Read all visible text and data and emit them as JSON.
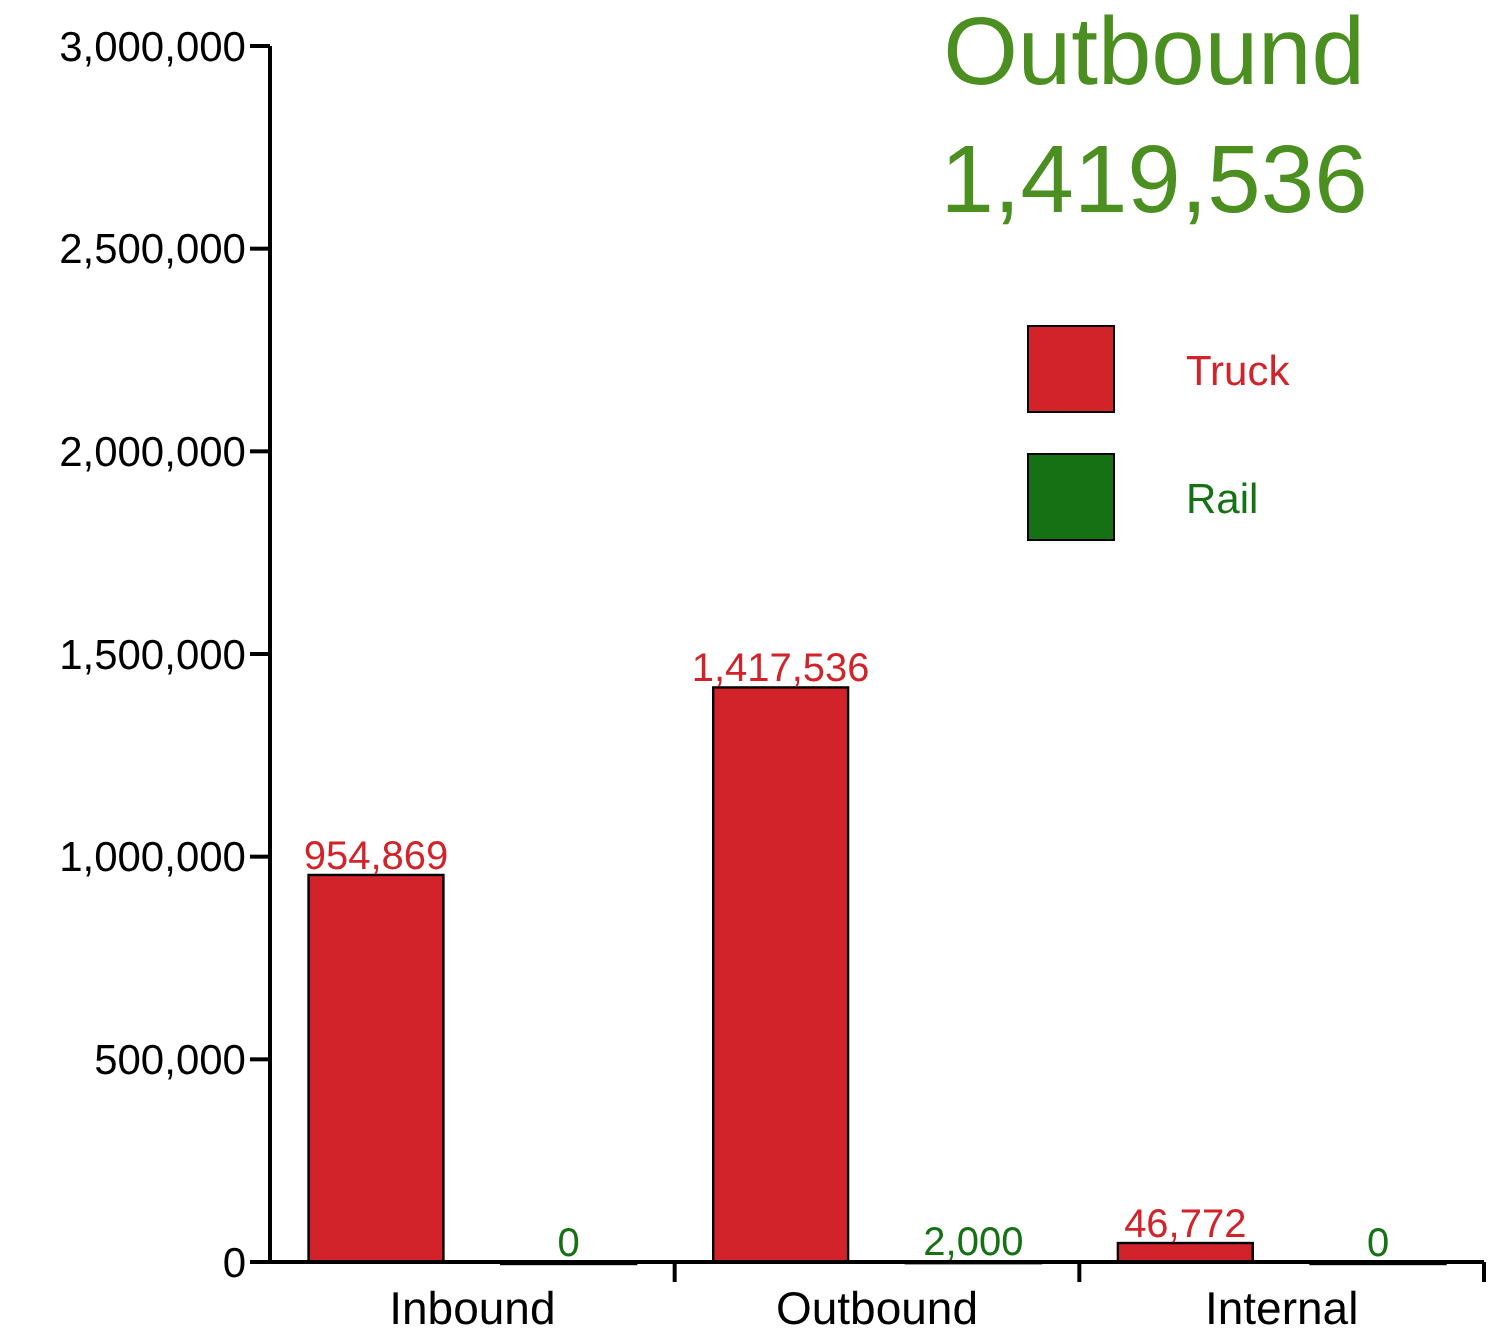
{
  "chart_data": {
    "type": "bar",
    "title": "Outbound",
    "subtitle": "1,419,536",
    "categories": [
      "Inbound",
      "Outbound",
      "Internal"
    ],
    "series": [
      {
        "name": "Truck",
        "color": "#d2232a",
        "values": [
          954869,
          1417536,
          46772
        ],
        "value_labels": [
          "954,869",
          "1,417,536",
          "46,772"
        ]
      },
      {
        "name": "Rail",
        "color": "#157114",
        "values": [
          0,
          2000,
          0
        ],
        "value_labels": [
          "0",
          "2,000",
          "0"
        ]
      }
    ],
    "ylim": [
      0,
      3000000
    ],
    "yticks": [
      {
        "value": 0,
        "label": "0"
      },
      {
        "value": 500000,
        "label": "500,000"
      },
      {
        "value": 1000000,
        "label": "1,000,000"
      },
      {
        "value": 1500000,
        "label": "1,500,000"
      },
      {
        "value": 2000000,
        "label": "2,000,000"
      },
      {
        "value": 2500000,
        "label": "2,500,000"
      },
      {
        "value": 3000000,
        "label": "3,000,000"
      }
    ],
    "legend": "top right",
    "grid": false
  }
}
